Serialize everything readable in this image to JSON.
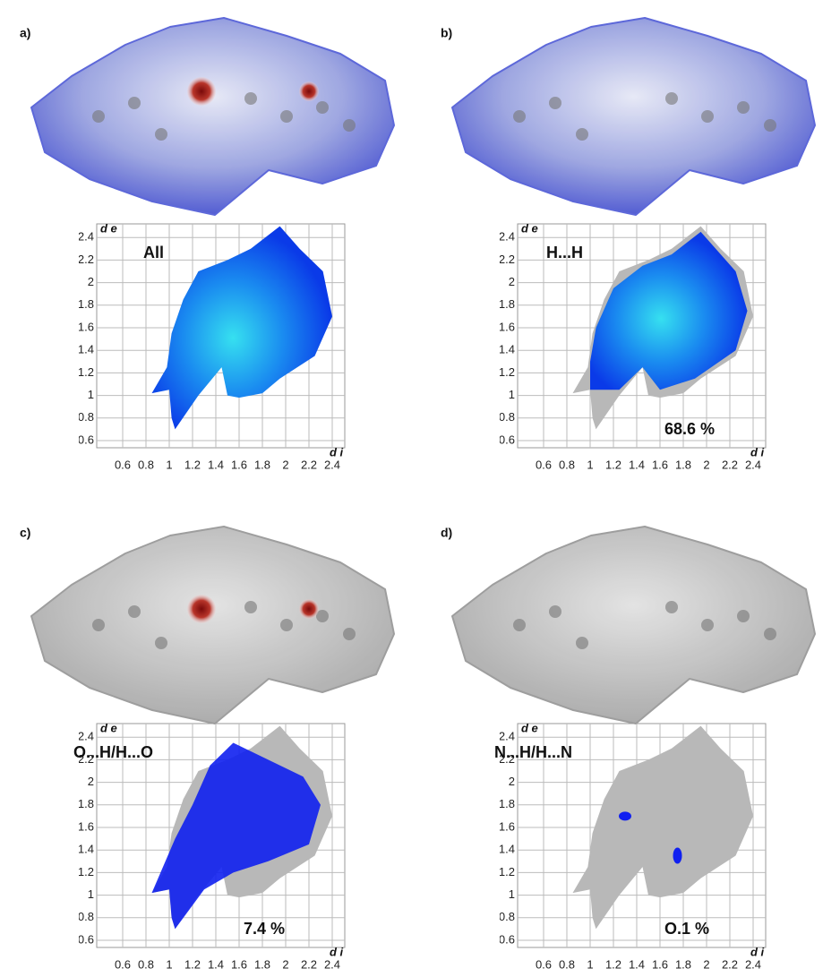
{
  "axis": {
    "xlabel": "d i",
    "ylabel": "d e",
    "xticks": [
      0.6,
      0.8,
      1.0,
      1.2,
      1.4,
      1.6,
      1.8,
      2.0,
      2.2,
      2.4
    ],
    "yticks": [
      0.6,
      0.8,
      1.0,
      1.2,
      1.4,
      1.6,
      1.8,
      2.0,
      2.2,
      2.4
    ]
  },
  "panels": [
    {
      "label": "a)",
      "plot_label": "All"
    },
    {
      "label": "b)",
      "plot_label": "H...H",
      "percent": "68.6 %"
    },
    {
      "label": "c)",
      "plot_label": "O...H/H...O",
      "percent": "7.4 %"
    },
    {
      "label": "d)",
      "plot_label": "N...H/H...N",
      "percent": "O.1 %"
    }
  ]
}
